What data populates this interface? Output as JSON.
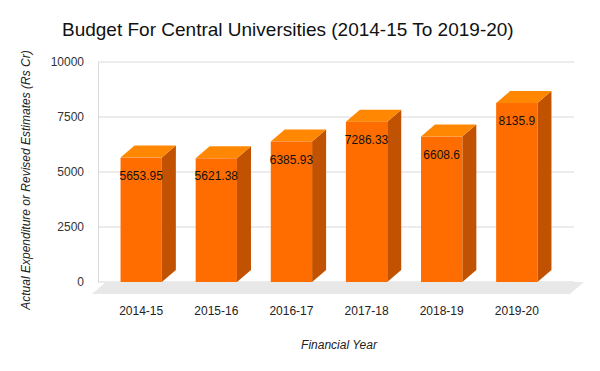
{
  "chart_data": {
    "type": "bar",
    "title": "Budget For Central Universities (2014-15 To 2019-20)",
    "x_label": "Financial Year",
    "y_label": "Actual Expenditure or Revised Estimates (Rs Cr)",
    "categories": [
      "2014-15",
      "2015-16",
      "2016-17",
      "2017-18",
      "2018-19",
      "2019-20"
    ],
    "values": [
      5653.95,
      5621.38,
      6385.93,
      7286.33,
      6608.6,
      8135.9
    ],
    "color": "#ff6d01",
    "ylim": [
      0,
      10000
    ],
    "yticks": [
      0,
      2500,
      5000,
      7500,
      10000
    ],
    "grid": true,
    "data_labels": true
  }
}
